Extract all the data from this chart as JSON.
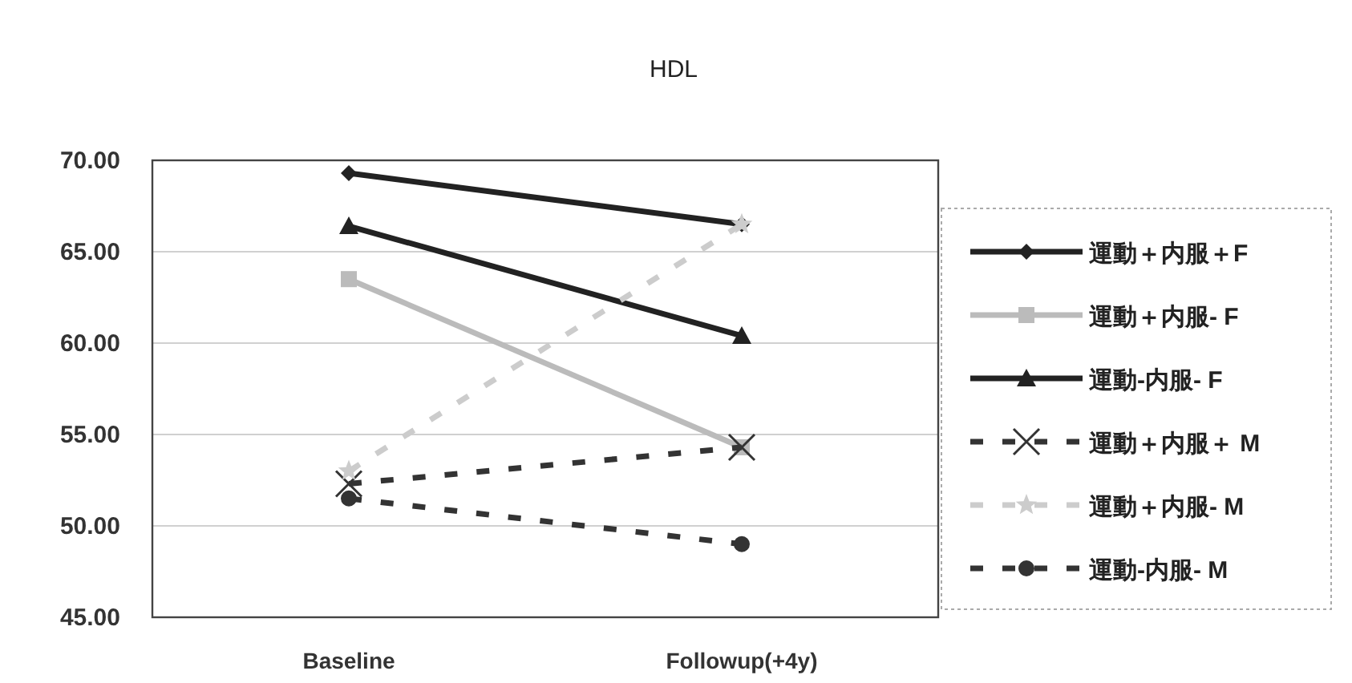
{
  "chart_data": {
    "type": "line",
    "title": "HDL",
    "categories": [
      "Baseline",
      "Followup(+4y)"
    ],
    "series": [
      {
        "name": "運動＋内服＋F",
        "color": "#222222",
        "values": [
          69.3,
          66.5
        ],
        "marker": "diamond",
        "line_style": "solid"
      },
      {
        "name": "運動＋内服- F",
        "color": "#bbbbbb",
        "values": [
          63.5,
          54.3
        ],
        "marker": "square",
        "line_style": "solid"
      },
      {
        "name": "運動-内服- F",
        "color": "#222222",
        "values": [
          66.4,
          60.4
        ],
        "marker": "triangle",
        "line_style": "solid"
      },
      {
        "name": "運動＋内服＋ M",
        "color": "#333333",
        "values": [
          52.3,
          54.3
        ],
        "marker": "cross",
        "line_style": "dashed"
      },
      {
        "name": "運動＋内服- M",
        "color": "#cccccc",
        "values": [
          53.0,
          66.5
        ],
        "marker": "star",
        "line_style": "dashed"
      },
      {
        "name": "運動-内服- M",
        "color": "#333333",
        "values": [
          51.5,
          49.0
        ],
        "marker": "circle",
        "line_style": "dashed"
      }
    ],
    "ylim": [
      45,
      70
    ],
    "yticks": [
      {
        "value": 45,
        "label": "45.00"
      },
      {
        "value": 50,
        "label": "50.00"
      },
      {
        "value": 55,
        "label": "55.00"
      },
      {
        "value": 60,
        "label": "60.00"
      },
      {
        "value": 65,
        "label": "65.00"
      },
      {
        "value": 70,
        "label": "70.00"
      }
    ],
    "grid": "y",
    "legend": "right"
  }
}
